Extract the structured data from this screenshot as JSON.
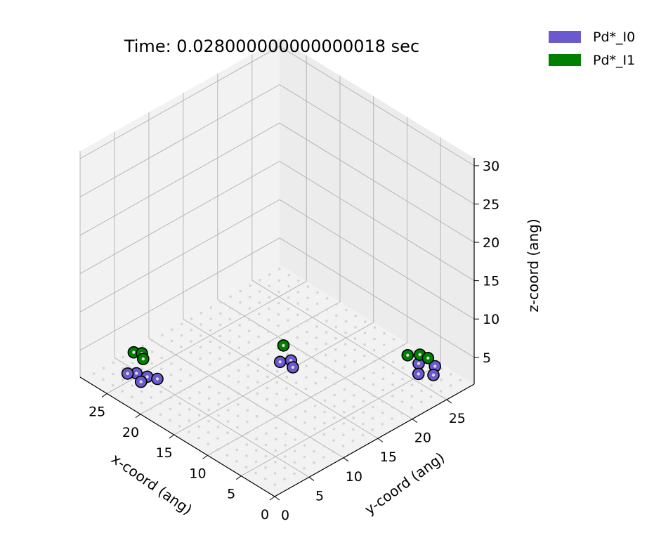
{
  "chart_data": {
    "type": "scatter",
    "projection": "3d",
    "title": "Time: 0.028000000000000018 sec",
    "xlabel": "x-coord (ang)",
    "ylabel": "y-coord (ang)",
    "zlabel": "z-coord (ang)",
    "xlim": [
      0,
      29
    ],
    "ylim": [
      0,
      29
    ],
    "zlim": [
      1.5,
      31
    ],
    "xticks": [
      "0",
      "5",
      "10",
      "15",
      "20",
      "25"
    ],
    "yticks": [
      "0",
      "5",
      "10",
      "15",
      "20",
      "25"
    ],
    "zticks": [
      "5",
      "10",
      "15",
      "20",
      "25",
      "30"
    ],
    "grid": true,
    "legend_position": "top-right",
    "series": [
      {
        "name": "Pd*_I0",
        "color": "#6a5acd",
        "points": [
          [
            3.0,
            26.0,
            2.6
          ],
          [
            4.0,
            27.2,
            2.6
          ],
          [
            5.5,
            26.3,
            2.6
          ],
          [
            4.2,
            25.0,
            2.6
          ],
          [
            15.0,
            17.0,
            2.6
          ],
          [
            14.0,
            16.3,
            2.6
          ],
          [
            15.6,
            16.0,
            2.6
          ],
          [
            23.2,
            4.1,
            2.6
          ],
          [
            24.4,
            3.7,
            2.6
          ],
          [
            25.0,
            3.0,
            2.6
          ],
          [
            23.0,
            3.0,
            2.6
          ],
          [
            22.2,
            4.6,
            2.6
          ]
        ]
      },
      {
        "name": "Pd*_I1",
        "color": "#008000",
        "points": [
          [
            4.5,
            25.5,
            4.7
          ],
          [
            5.3,
            24.5,
            4.7
          ],
          [
            3.5,
            25.7,
            4.7
          ],
          [
            15.4,
            16.3,
            4.7
          ],
          [
            24.5,
            4.6,
            4.7
          ],
          [
            25.2,
            4.1,
            4.7
          ],
          [
            23.7,
            4.0,
            4.7
          ]
        ]
      }
    ]
  }
}
